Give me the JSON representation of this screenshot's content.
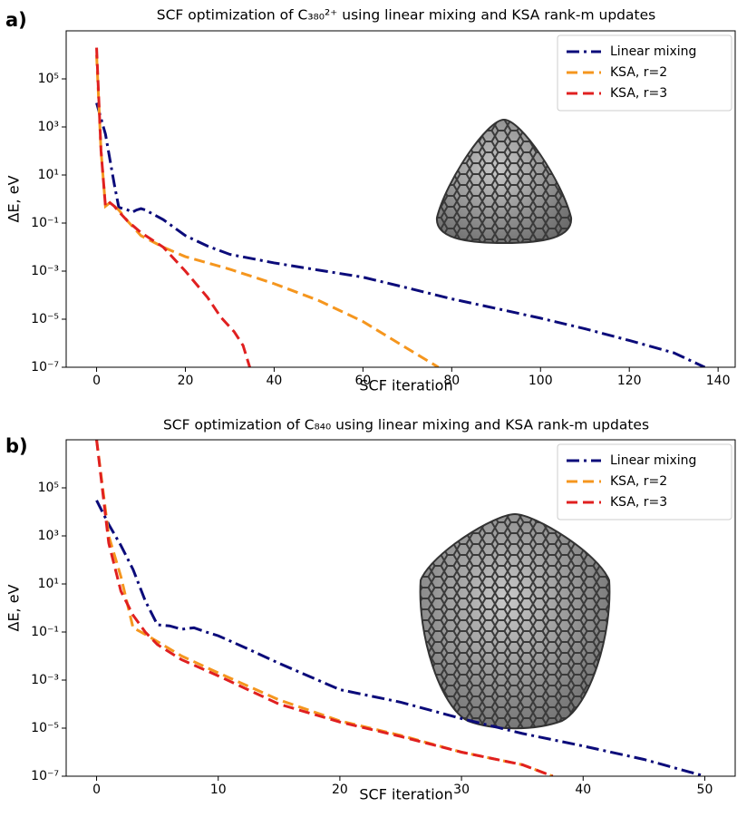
{
  "chart_data": [
    {
      "type": "line",
      "panel_label": "a)",
      "title": "SCF optimization of C₃₈₀²⁺ using linear mixing and KSA rank-m updates",
      "xlabel": "SCF iteration",
      "ylabel": "ΔE, eV",
      "yscale": "log",
      "legend": "upper right",
      "xlim": [
        -6.85,
        143.85
      ],
      "ylim": [
        1e-07,
        10000000.0
      ],
      "xticks": [
        0,
        20,
        40,
        60,
        80,
        100,
        120,
        140
      ],
      "yticks": [
        {
          "value": 1e-07,
          "label": "10⁻⁷"
        },
        {
          "value": 1e-05,
          "label": "10⁻⁵"
        },
        {
          "value": 0.001,
          "label": "10⁻³"
        },
        {
          "value": 0.1,
          "label": "10⁻¹"
        },
        {
          "value": 10,
          "label": "10¹"
        },
        {
          "value": 1000,
          "label": "10³"
        },
        {
          "value": 100000,
          "label": "10⁵"
        }
      ],
      "series": [
        {
          "name": "Linear mixing",
          "color": "#0b0b7a",
          "linestyle": "dashdot",
          "x": [
            0,
            2,
            4,
            5,
            7,
            8,
            9,
            10,
            11,
            13,
            15,
            20,
            25,
            30,
            40,
            50,
            60,
            70,
            80,
            90,
            100,
            110,
            120,
            130,
            137
          ],
          "values": [
            10000.0,
            500.0,
            4,
            0.45,
            0.35,
            0.28,
            0.35,
            0.4,
            0.35,
            0.22,
            0.14,
            0.03,
            0.011,
            0.005,
            0.0022,
            0.0011,
            0.00056,
            0.0002,
            7e-05,
            2.8e-05,
            1.1e-05,
            4e-06,
            1.3e-06,
            4e-07,
            1e-07
          ]
        },
        {
          "name": "KSA, r=2",
          "color": "#f5961e",
          "linestyle": "dash",
          "x": [
            0,
            1,
            2,
            3,
            4,
            5,
            7,
            10,
            15,
            20,
            30,
            40,
            50,
            60,
            70,
            77
          ],
          "values": [
            1000000.0,
            100.0,
            0.5,
            0.7,
            0.5,
            0.35,
            0.12,
            0.03,
            0.01,
            0.004,
            0.0012,
            0.0003,
            6e-05,
            8e-06,
            6e-07,
            1e-07
          ]
        },
        {
          "name": "KSA, r=3",
          "color": "#e02020",
          "linestyle": "dash",
          "x": [
            0,
            1,
            2,
            3,
            4,
            5,
            7,
            10,
            15,
            20,
            25,
            28,
            31,
            33,
            34.5
          ],
          "values": [
            2000000.0,
            100.0,
            0.5,
            0.7,
            0.5,
            0.3,
            0.12,
            0.04,
            0.01,
            0.001,
            8e-05,
            1.2e-05,
            3e-06,
            8e-07,
            1e-07
          ]
        }
      ]
    },
    {
      "type": "line",
      "panel_label": "b)",
      "title": "SCF optimization of C₈₄₀ using linear mixing and KSA rank-m updates",
      "xlabel": "SCF iteration",
      "ylabel": "ΔE, eV",
      "yscale": "log",
      "legend": "upper right",
      "xlim": [
        -2.5,
        52.5
      ],
      "ylim": [
        1e-07,
        10000000.0
      ],
      "xticks": [
        0,
        10,
        20,
        30,
        40,
        50
      ],
      "yticks": [
        {
          "value": 1e-07,
          "label": "10⁻⁷"
        },
        {
          "value": 1e-05,
          "label": "10⁻⁵"
        },
        {
          "value": 0.001,
          "label": "10⁻³"
        },
        {
          "value": 0.1,
          "label": "10⁻¹"
        },
        {
          "value": 10,
          "label": "10¹"
        },
        {
          "value": 1000,
          "label": "10³"
        },
        {
          "value": 100000,
          "label": "10⁵"
        }
      ],
      "series": [
        {
          "name": "Linear mixing",
          "color": "#0b0b7a",
          "linestyle": "dashdot",
          "x": [
            0,
            1,
            2,
            3,
            4,
            5,
            6,
            7,
            8,
            9,
            10,
            12,
            15,
            20,
            25,
            30,
            35,
            40,
            45,
            50
          ],
          "values": [
            30000.0,
            3000.0,
            400.0,
            40,
            2,
            0.2,
            0.18,
            0.13,
            0.15,
            0.1,
            0.07,
            0.025,
            0.005,
            0.0004,
            0.00012,
            2.5e-05,
            6e-06,
            1.8e-06,
            5e-07,
            1e-07
          ]
        },
        {
          "name": "KSA, r=2",
          "color": "#f5961e",
          "linestyle": "dash",
          "x": [
            0,
            1,
            2,
            3,
            4,
            5,
            7,
            10,
            15,
            20,
            25,
            30,
            35,
            37.5
          ],
          "values": [
            10000000.0,
            1000.0,
            20,
            0.15,
            0.08,
            0.04,
            0.01,
            0.002,
            0.00015,
            2e-05,
            5e-06,
            1e-06,
            3e-07,
            1e-07
          ]
        },
        {
          "name": "KSA, r=3",
          "color": "#e02020",
          "linestyle": "dash",
          "x": [
            0,
            1,
            2,
            3,
            4,
            5,
            7,
            10,
            15,
            20,
            25,
            30,
            35,
            37.5
          ],
          "values": [
            10000000.0,
            500.0,
            5,
            0.5,
            0.1,
            0.03,
            0.007,
            0.0015,
            0.0001,
            1.8e-05,
            4.5e-06,
            1e-06,
            3e-07,
            1e-07
          ]
        }
      ]
    }
  ]
}
